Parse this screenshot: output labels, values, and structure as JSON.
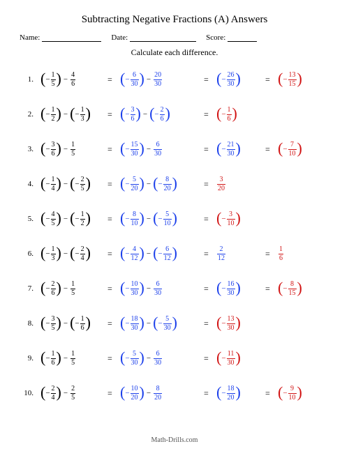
{
  "title": "Subtracting Negative Fractions (A) Answers",
  "labels": {
    "name": "Name:",
    "date": "Date:",
    "score": "Score:"
  },
  "instruction": "Calculate each difference.",
  "footer": "Math-Drills.com",
  "colors": {
    "step": "#1a3eea",
    "answer": "#d11313",
    "text": "#000000"
  },
  "problems": [
    {
      "n": "1.",
      "lhs": {
        "a": {
          "neg": true,
          "paren": true,
          "num": "1",
          "den": "5"
        },
        "op": "−",
        "b": {
          "neg": false,
          "paren": false,
          "num": "4",
          "den": "6"
        }
      },
      "step1": {
        "a": {
          "neg": true,
          "paren": true,
          "num": "6",
          "den": "30"
        },
        "op": "−",
        "b": {
          "neg": false,
          "paren": false,
          "num": "20",
          "den": "30"
        }
      },
      "step2": {
        "neg": true,
        "paren": true,
        "num": "26",
        "den": "30"
      },
      "final": {
        "neg": true,
        "paren": true,
        "num": "13",
        "den": "15"
      }
    },
    {
      "n": "2.",
      "lhs": {
        "a": {
          "neg": true,
          "paren": true,
          "num": "1",
          "den": "2"
        },
        "op": "−",
        "b": {
          "neg": true,
          "paren": true,
          "num": "1",
          "den": "3"
        }
      },
      "step1": {
        "a": {
          "neg": true,
          "paren": true,
          "num": "3",
          "den": "6"
        },
        "op": "−",
        "b": {
          "neg": true,
          "paren": true,
          "num": "2",
          "den": "6"
        }
      },
      "step2": {
        "neg": true,
        "paren": true,
        "num": "1",
        "den": "6",
        "isfinal": true
      },
      "final": null
    },
    {
      "n": "3.",
      "lhs": {
        "a": {
          "neg": true,
          "paren": true,
          "num": "3",
          "den": "6"
        },
        "op": "−",
        "b": {
          "neg": false,
          "paren": false,
          "num": "1",
          "den": "5"
        }
      },
      "step1": {
        "a": {
          "neg": true,
          "paren": true,
          "num": "15",
          "den": "30"
        },
        "op": "−",
        "b": {
          "neg": false,
          "paren": false,
          "num": "6",
          "den": "30"
        }
      },
      "step2": {
        "neg": true,
        "paren": true,
        "num": "21",
        "den": "30"
      },
      "final": {
        "neg": true,
        "paren": true,
        "num": "7",
        "den": "10"
      }
    },
    {
      "n": "4.",
      "lhs": {
        "a": {
          "neg": true,
          "paren": true,
          "num": "1",
          "den": "4"
        },
        "op": "−",
        "b": {
          "neg": true,
          "paren": true,
          "num": "2",
          "den": "5"
        }
      },
      "step1": {
        "a": {
          "neg": true,
          "paren": true,
          "num": "5",
          "den": "20"
        },
        "op": "−",
        "b": {
          "neg": true,
          "paren": true,
          "num": "8",
          "den": "20"
        }
      },
      "step2": {
        "neg": false,
        "paren": false,
        "num": "3",
        "den": "20",
        "isfinal": true
      },
      "final": null
    },
    {
      "n": "5.",
      "lhs": {
        "a": {
          "neg": true,
          "paren": true,
          "num": "4",
          "den": "5"
        },
        "op": "−",
        "b": {
          "neg": true,
          "paren": true,
          "num": "1",
          "den": "2"
        }
      },
      "step1": {
        "a": {
          "neg": true,
          "paren": true,
          "num": "8",
          "den": "10"
        },
        "op": "−",
        "b": {
          "neg": true,
          "paren": true,
          "num": "5",
          "den": "10"
        }
      },
      "step2": {
        "neg": true,
        "paren": true,
        "num": "3",
        "den": "10",
        "isfinal": true
      },
      "final": null
    },
    {
      "n": "6.",
      "lhs": {
        "a": {
          "neg": true,
          "paren": true,
          "num": "1",
          "den": "3"
        },
        "op": "−",
        "b": {
          "neg": true,
          "paren": true,
          "num": "2",
          "den": "4"
        }
      },
      "step1": {
        "a": {
          "neg": true,
          "paren": true,
          "num": "4",
          "den": "12"
        },
        "op": "−",
        "b": {
          "neg": true,
          "paren": true,
          "num": "6",
          "den": "12"
        }
      },
      "step2": {
        "neg": false,
        "paren": false,
        "num": "2",
        "den": "12"
      },
      "final": {
        "neg": false,
        "paren": false,
        "num": "1",
        "den": "6"
      }
    },
    {
      "n": "7.",
      "lhs": {
        "a": {
          "neg": true,
          "paren": true,
          "num": "2",
          "den": "6"
        },
        "op": "−",
        "b": {
          "neg": false,
          "paren": false,
          "num": "1",
          "den": "5"
        }
      },
      "step1": {
        "a": {
          "neg": true,
          "paren": true,
          "num": "10",
          "den": "30"
        },
        "op": "−",
        "b": {
          "neg": false,
          "paren": false,
          "num": "6",
          "den": "30"
        }
      },
      "step2": {
        "neg": true,
        "paren": true,
        "num": "16",
        "den": "30"
      },
      "final": {
        "neg": true,
        "paren": true,
        "num": "8",
        "den": "15"
      }
    },
    {
      "n": "8.",
      "lhs": {
        "a": {
          "neg": true,
          "paren": true,
          "num": "3",
          "den": "5"
        },
        "op": "−",
        "b": {
          "neg": true,
          "paren": true,
          "num": "1",
          "den": "6"
        }
      },
      "step1": {
        "a": {
          "neg": true,
          "paren": true,
          "num": "18",
          "den": "30"
        },
        "op": "−",
        "b": {
          "neg": true,
          "paren": true,
          "num": "5",
          "den": "30"
        }
      },
      "step2": {
        "neg": true,
        "paren": true,
        "num": "13",
        "den": "30",
        "isfinal": true
      },
      "final": null
    },
    {
      "n": "9.",
      "lhs": {
        "a": {
          "neg": true,
          "paren": true,
          "num": "1",
          "den": "6"
        },
        "op": "−",
        "b": {
          "neg": false,
          "paren": false,
          "num": "1",
          "den": "5"
        }
      },
      "step1": {
        "a": {
          "neg": true,
          "paren": true,
          "num": "5",
          "den": "30"
        },
        "op": "−",
        "b": {
          "neg": false,
          "paren": false,
          "num": "6",
          "den": "30"
        }
      },
      "step2": {
        "neg": true,
        "paren": true,
        "num": "11",
        "den": "30",
        "isfinal": true
      },
      "final": null
    },
    {
      "n": "10.",
      "lhs": {
        "a": {
          "neg": true,
          "paren": true,
          "num": "2",
          "den": "4"
        },
        "op": "−",
        "b": {
          "neg": false,
          "paren": false,
          "num": "2",
          "den": "5"
        }
      },
      "step1": {
        "a": {
          "neg": true,
          "paren": true,
          "num": "10",
          "den": "20"
        },
        "op": "−",
        "b": {
          "neg": false,
          "paren": false,
          "num": "8",
          "den": "20"
        }
      },
      "step2": {
        "neg": true,
        "paren": true,
        "num": "18",
        "den": "20"
      },
      "final": {
        "neg": true,
        "paren": true,
        "num": "9",
        "den": "10"
      }
    }
  ]
}
